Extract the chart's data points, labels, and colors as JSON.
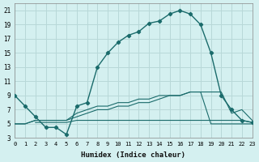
{
  "xlabel": "Humidex (Indice chaleur)",
  "background_color": "#d4f0f0",
  "grid_color": "#b8d8d8",
  "line_color": "#1a6b6b",
  "xlim": [
    0,
    23
  ],
  "ylim": [
    3,
    22
  ],
  "xticks": [
    0,
    1,
    2,
    3,
    4,
    5,
    6,
    7,
    8,
    9,
    10,
    11,
    12,
    13,
    14,
    15,
    16,
    17,
    18,
    19,
    20,
    21,
    22,
    23
  ],
  "yticks": [
    3,
    5,
    7,
    9,
    11,
    13,
    15,
    17,
    19,
    21
  ],
  "series1_x": [
    0,
    1,
    2,
    3,
    4,
    5,
    6,
    7,
    8,
    9,
    10,
    11,
    12,
    13,
    14,
    15,
    16,
    17,
    18,
    19,
    20,
    21,
    22,
    23
  ],
  "series1_y": [
    9,
    7.5,
    6,
    4.5,
    4.5,
    3.5,
    7.5,
    8,
    13,
    15,
    16.5,
    17.5,
    18,
    19.2,
    19.5,
    20.5,
    21,
    20.5,
    19,
    15,
    9,
    7,
    5.5,
    5.2
  ],
  "series2_x": [
    0,
    1,
    2,
    3,
    4,
    5,
    6,
    7,
    8,
    9,
    10,
    11,
    12,
    13,
    14,
    15,
    16,
    17,
    18,
    19,
    20,
    21,
    22,
    23
  ],
  "series2_y": [
    5,
    5,
    5.5,
    5.5,
    5.5,
    5.5,
    6.5,
    7,
    7.5,
    7.5,
    8,
    8,
    8.5,
    8.5,
    9,
    9,
    9,
    9.5,
    9.5,
    9.5,
    9.5,
    6.5,
    7,
    5.5
  ],
  "series3_x": [
    0,
    1,
    2,
    3,
    4,
    5,
    6,
    7,
    8,
    9,
    10,
    11,
    12,
    13,
    14,
    15,
    16,
    17,
    18,
    19,
    20,
    21,
    22,
    23
  ],
  "series3_y": [
    5,
    5,
    5.5,
    5.5,
    5.5,
    5.5,
    6,
    6.5,
    7,
    7,
    7.5,
    7.5,
    8,
    8,
    8.5,
    9,
    9,
    9.5,
    9.5,
    5,
    5,
    5,
    5,
    5
  ],
  "series4_x": [
    2,
    3,
    4,
    5,
    6,
    7,
    8,
    9,
    10,
    11,
    12,
    13,
    14,
    15,
    16,
    17,
    18,
    19,
    20,
    21,
    22,
    23
  ],
  "series4_y": [
    5.2,
    5.2,
    5.2,
    5.2,
    5.5,
    5.5,
    5.5,
    5.5,
    5.5,
    5.5,
    5.5,
    5.5,
    5.5,
    5.5,
    5.5,
    5.5,
    5.5,
    5.5,
    5.5,
    5.5,
    5.5,
    5.2
  ]
}
